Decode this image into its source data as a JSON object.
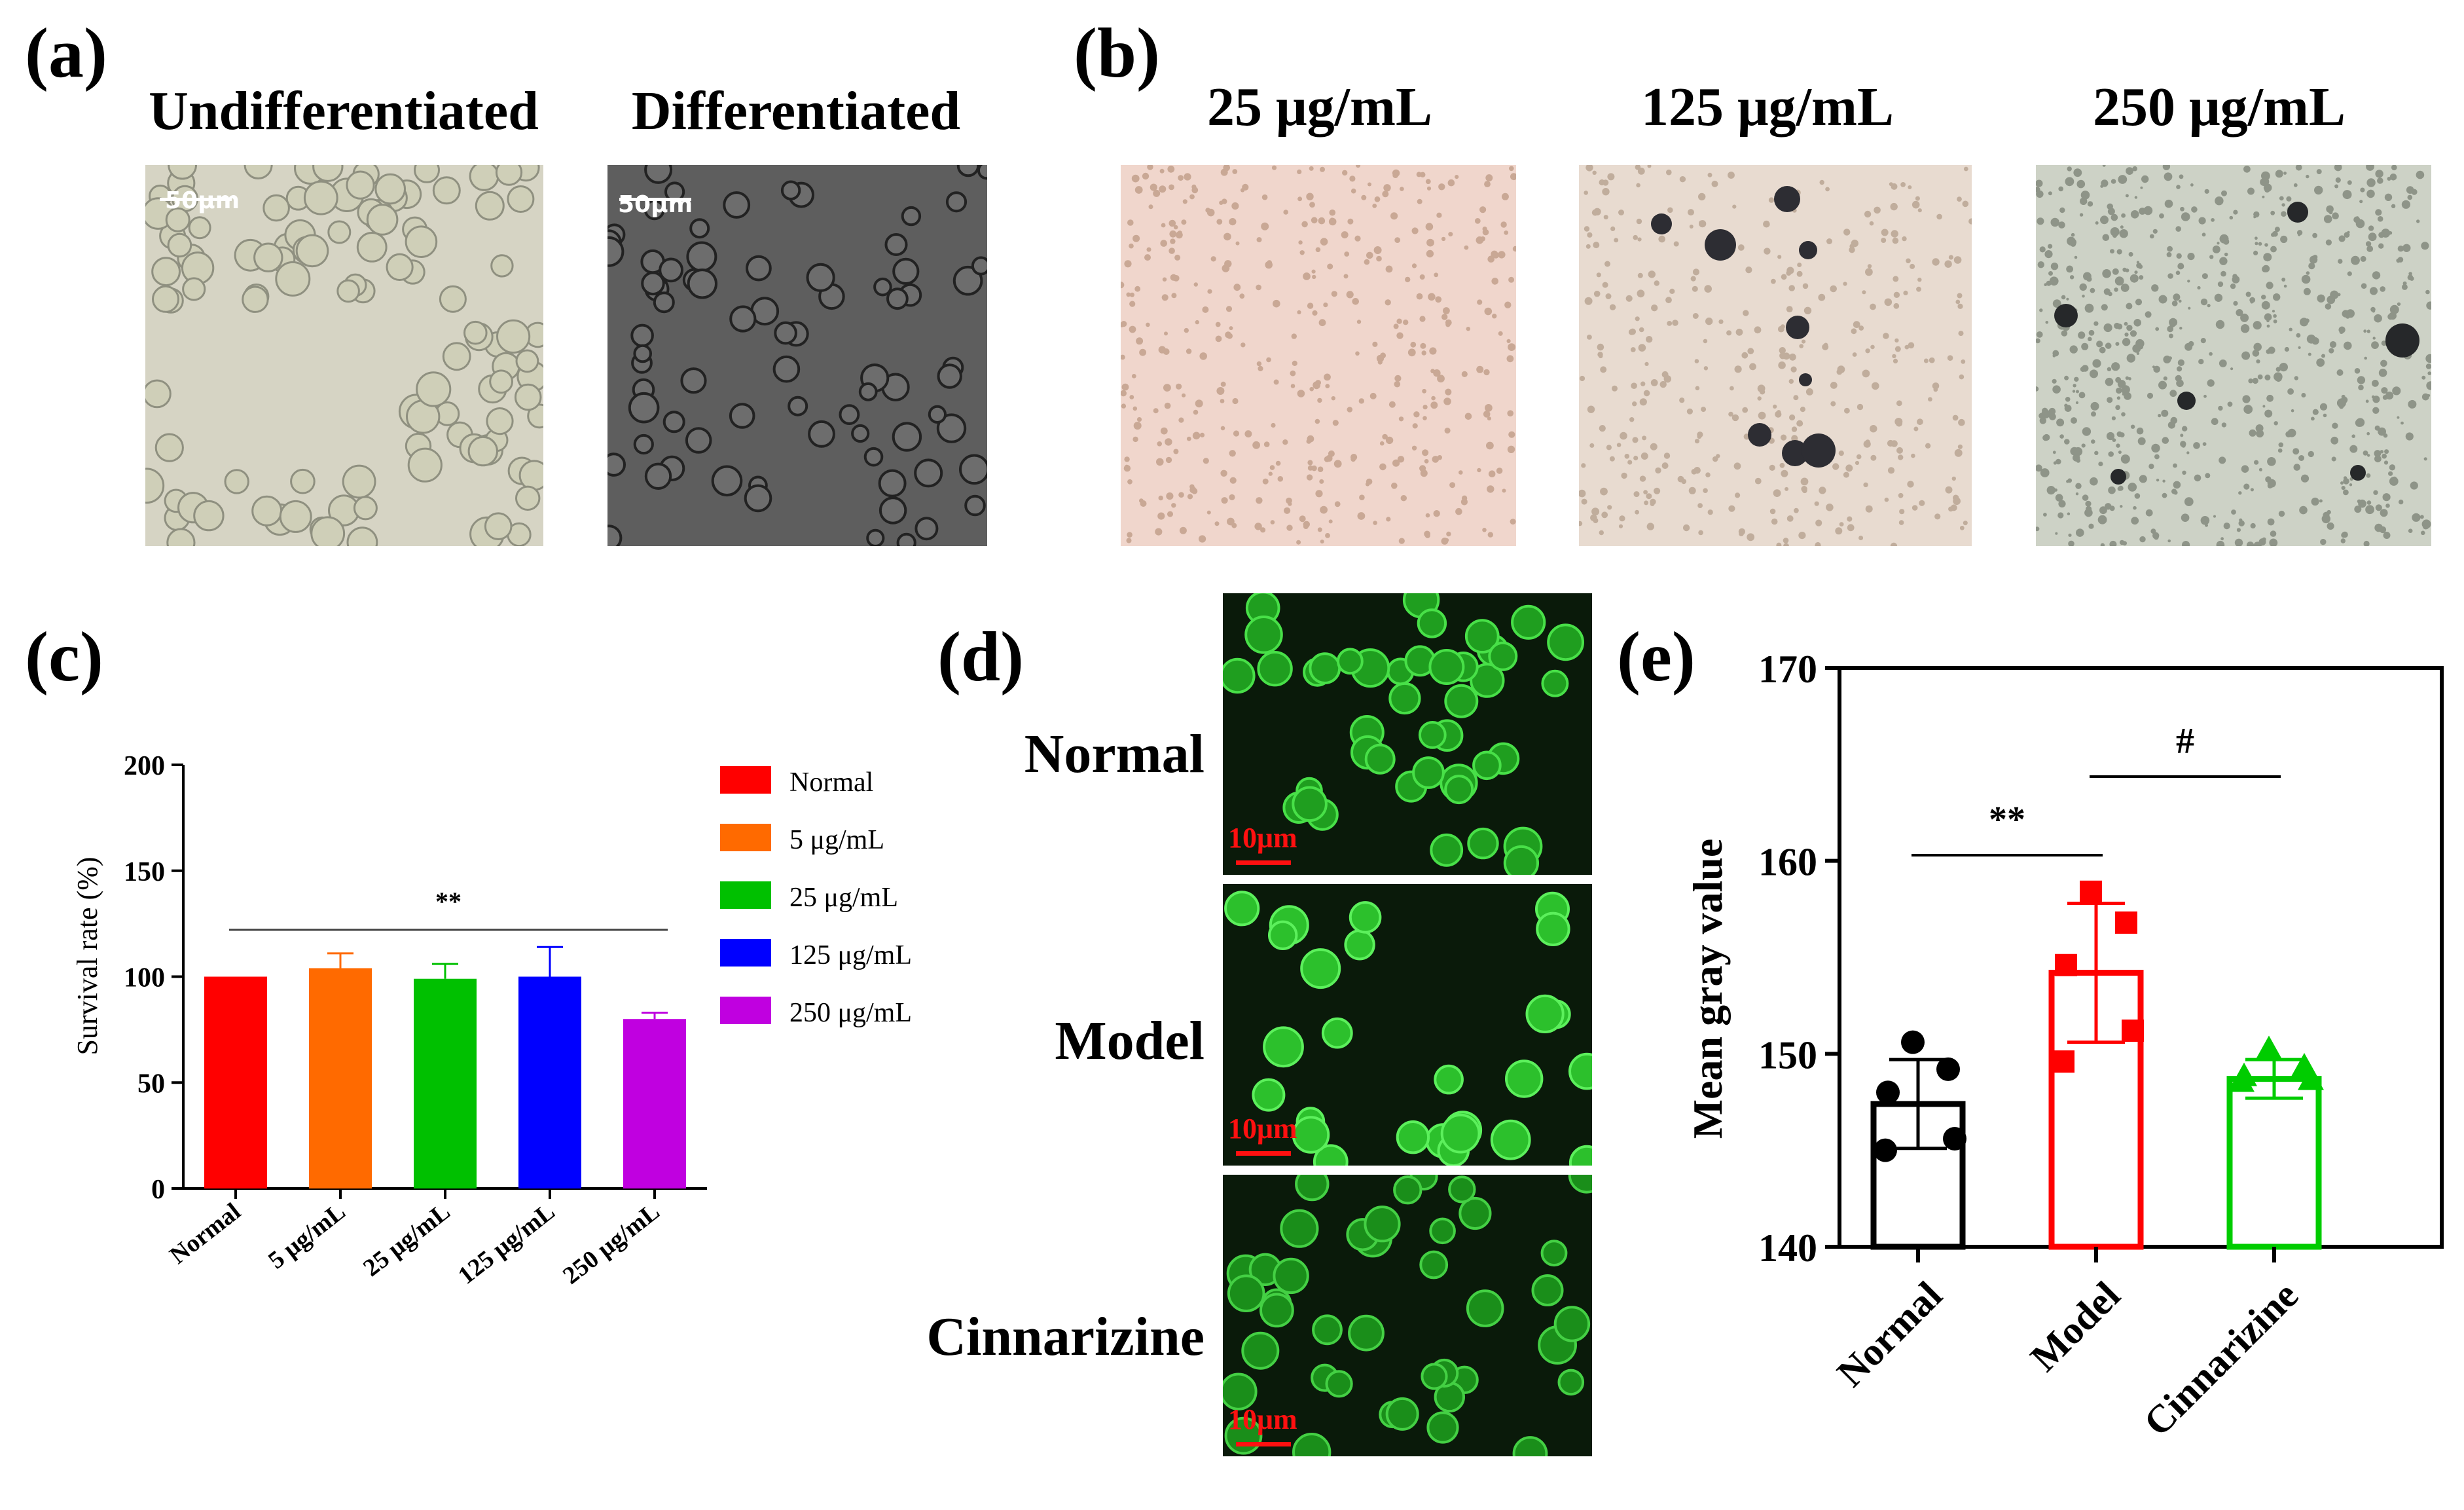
{
  "panels": {
    "a": {
      "letter": "(a)",
      "images": [
        {
          "title": "Undifferentiated",
          "scale_label": "50μm",
          "tone": "#d9d8c6"
        },
        {
          "title": "Differentiated",
          "scale_label": "50μm",
          "tone": "#5c5c5c"
        }
      ]
    },
    "b": {
      "letter": "(b)",
      "images": [
        {
          "title": "25 μg/mL",
          "tone": "#f2d9cf"
        },
        {
          "title": "125 μg/mL",
          "tone": "#e9dcd0"
        },
        {
          "title": "250 μg/mL",
          "tone": "#cdd3c8"
        }
      ]
    },
    "c": {
      "letter": "(c)"
    },
    "d": {
      "letter": "(d)",
      "rows": [
        {
          "label": "Normal",
          "scale_label": "10μm"
        },
        {
          "label": "Model",
          "scale_label": "10μm"
        },
        {
          "label": "Cinnarizine",
          "scale_label": "10μm"
        }
      ]
    },
    "e": {
      "letter": "(e)"
    }
  },
  "chart_data": [
    {
      "panel": "c",
      "type": "bar",
      "categories": [
        "Normal",
        "5 μg/mL",
        "25 μg/mL",
        "125 μg/mL",
        "250 μg/mL"
      ],
      "values": [
        100,
        104,
        99,
        100,
        80
      ],
      "errors": [
        0,
        7,
        7,
        14,
        3
      ],
      "colors": [
        "#ff0000",
        "#ff6a00",
        "#00c000",
        "#0000ff",
        "#c000e0"
      ],
      "legend": [
        "Normal",
        "5 μg/mL",
        "25 μg/mL",
        "125 μg/mL",
        "250 μg/mL"
      ],
      "ylabel": "Survival rate (%)",
      "ylim": [
        0,
        200
      ],
      "yticks": [
        0,
        50,
        100,
        150,
        200
      ],
      "legend_position": "right",
      "significance": [
        {
          "from": 0,
          "to": 4,
          "label": "**"
        }
      ]
    },
    {
      "panel": "e",
      "type": "bar",
      "categories": [
        "Normal",
        "Model",
        "Cinnarizine"
      ],
      "values": [
        147.4,
        154.2,
        148.7
      ],
      "errors": [
        2.3,
        3.6,
        1.0
      ],
      "colors": [
        "#000000",
        "#ff0000",
        "#00cc00"
      ],
      "markers": [
        "circle",
        "square",
        "triangle"
      ],
      "points": [
        [
          150.6,
          149.2,
          148.0,
          145.6,
          145.0
        ],
        [
          158.4,
          156.8,
          154.6,
          151.2,
          149.6
        ],
        [
          150.2,
          149.3,
          148.8,
          148.6,
          148.5
        ]
      ],
      "ylabel": "Mean gray value",
      "ylim": [
        140,
        170
      ],
      "yticks": [
        140,
        150,
        160,
        170
      ],
      "significance": [
        {
          "from": 0,
          "to": 1,
          "label": "**"
        },
        {
          "from": 1,
          "to": 2,
          "label": "#"
        }
      ]
    }
  ]
}
